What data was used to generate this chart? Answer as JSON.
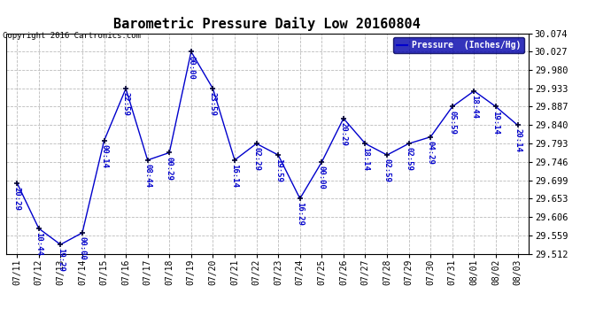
{
  "title": "Barometric Pressure Daily Low 20160804",
  "copyright": "Copyright 2016 Cartronics.com",
  "legend_label": "Pressure  (Inches/Hg)",
  "dates": [
    "07/11",
    "07/12",
    "07/13",
    "07/14",
    "07/15",
    "07/16",
    "07/17",
    "07/18",
    "07/19",
    "07/20",
    "07/21",
    "07/22",
    "07/23",
    "07/24",
    "07/25",
    "07/26",
    "07/27",
    "07/28",
    "07/29",
    "07/30",
    "07/31",
    "08/01",
    "08/02",
    "08/03"
  ],
  "values": [
    29.693,
    29.577,
    29.536,
    29.566,
    29.8,
    29.933,
    29.751,
    29.77,
    30.027,
    29.933,
    29.751,
    29.793,
    29.764,
    29.653,
    29.746,
    29.857,
    29.793,
    29.764,
    29.793,
    29.81,
    29.887,
    29.927,
    29.887,
    29.84
  ],
  "time_labels": [
    "20:29",
    "10:44",
    "19:29",
    "00:00",
    "00:14",
    "22:59",
    "08:44",
    "00:29",
    "00:00",
    "23:59",
    "16:14",
    "02:29",
    "19:59",
    "16:29",
    "00:00",
    "20:29",
    "18:14",
    "02:59",
    "02:59",
    "04:29",
    "05:59",
    "18:44",
    "19:14",
    "20:14"
  ],
  "line_color": "#0000CC",
  "bg_color": "#ffffff",
  "grid_color": "#bbbbbb",
  "ylim_min": 29.512,
  "ylim_max": 30.074,
  "yticks": [
    29.512,
    29.559,
    29.606,
    29.653,
    29.699,
    29.746,
    29.793,
    29.84,
    29.887,
    29.933,
    29.98,
    30.027,
    30.074
  ],
  "legend_bg": "#0000AA",
  "legend_fg": "#ffffff"
}
